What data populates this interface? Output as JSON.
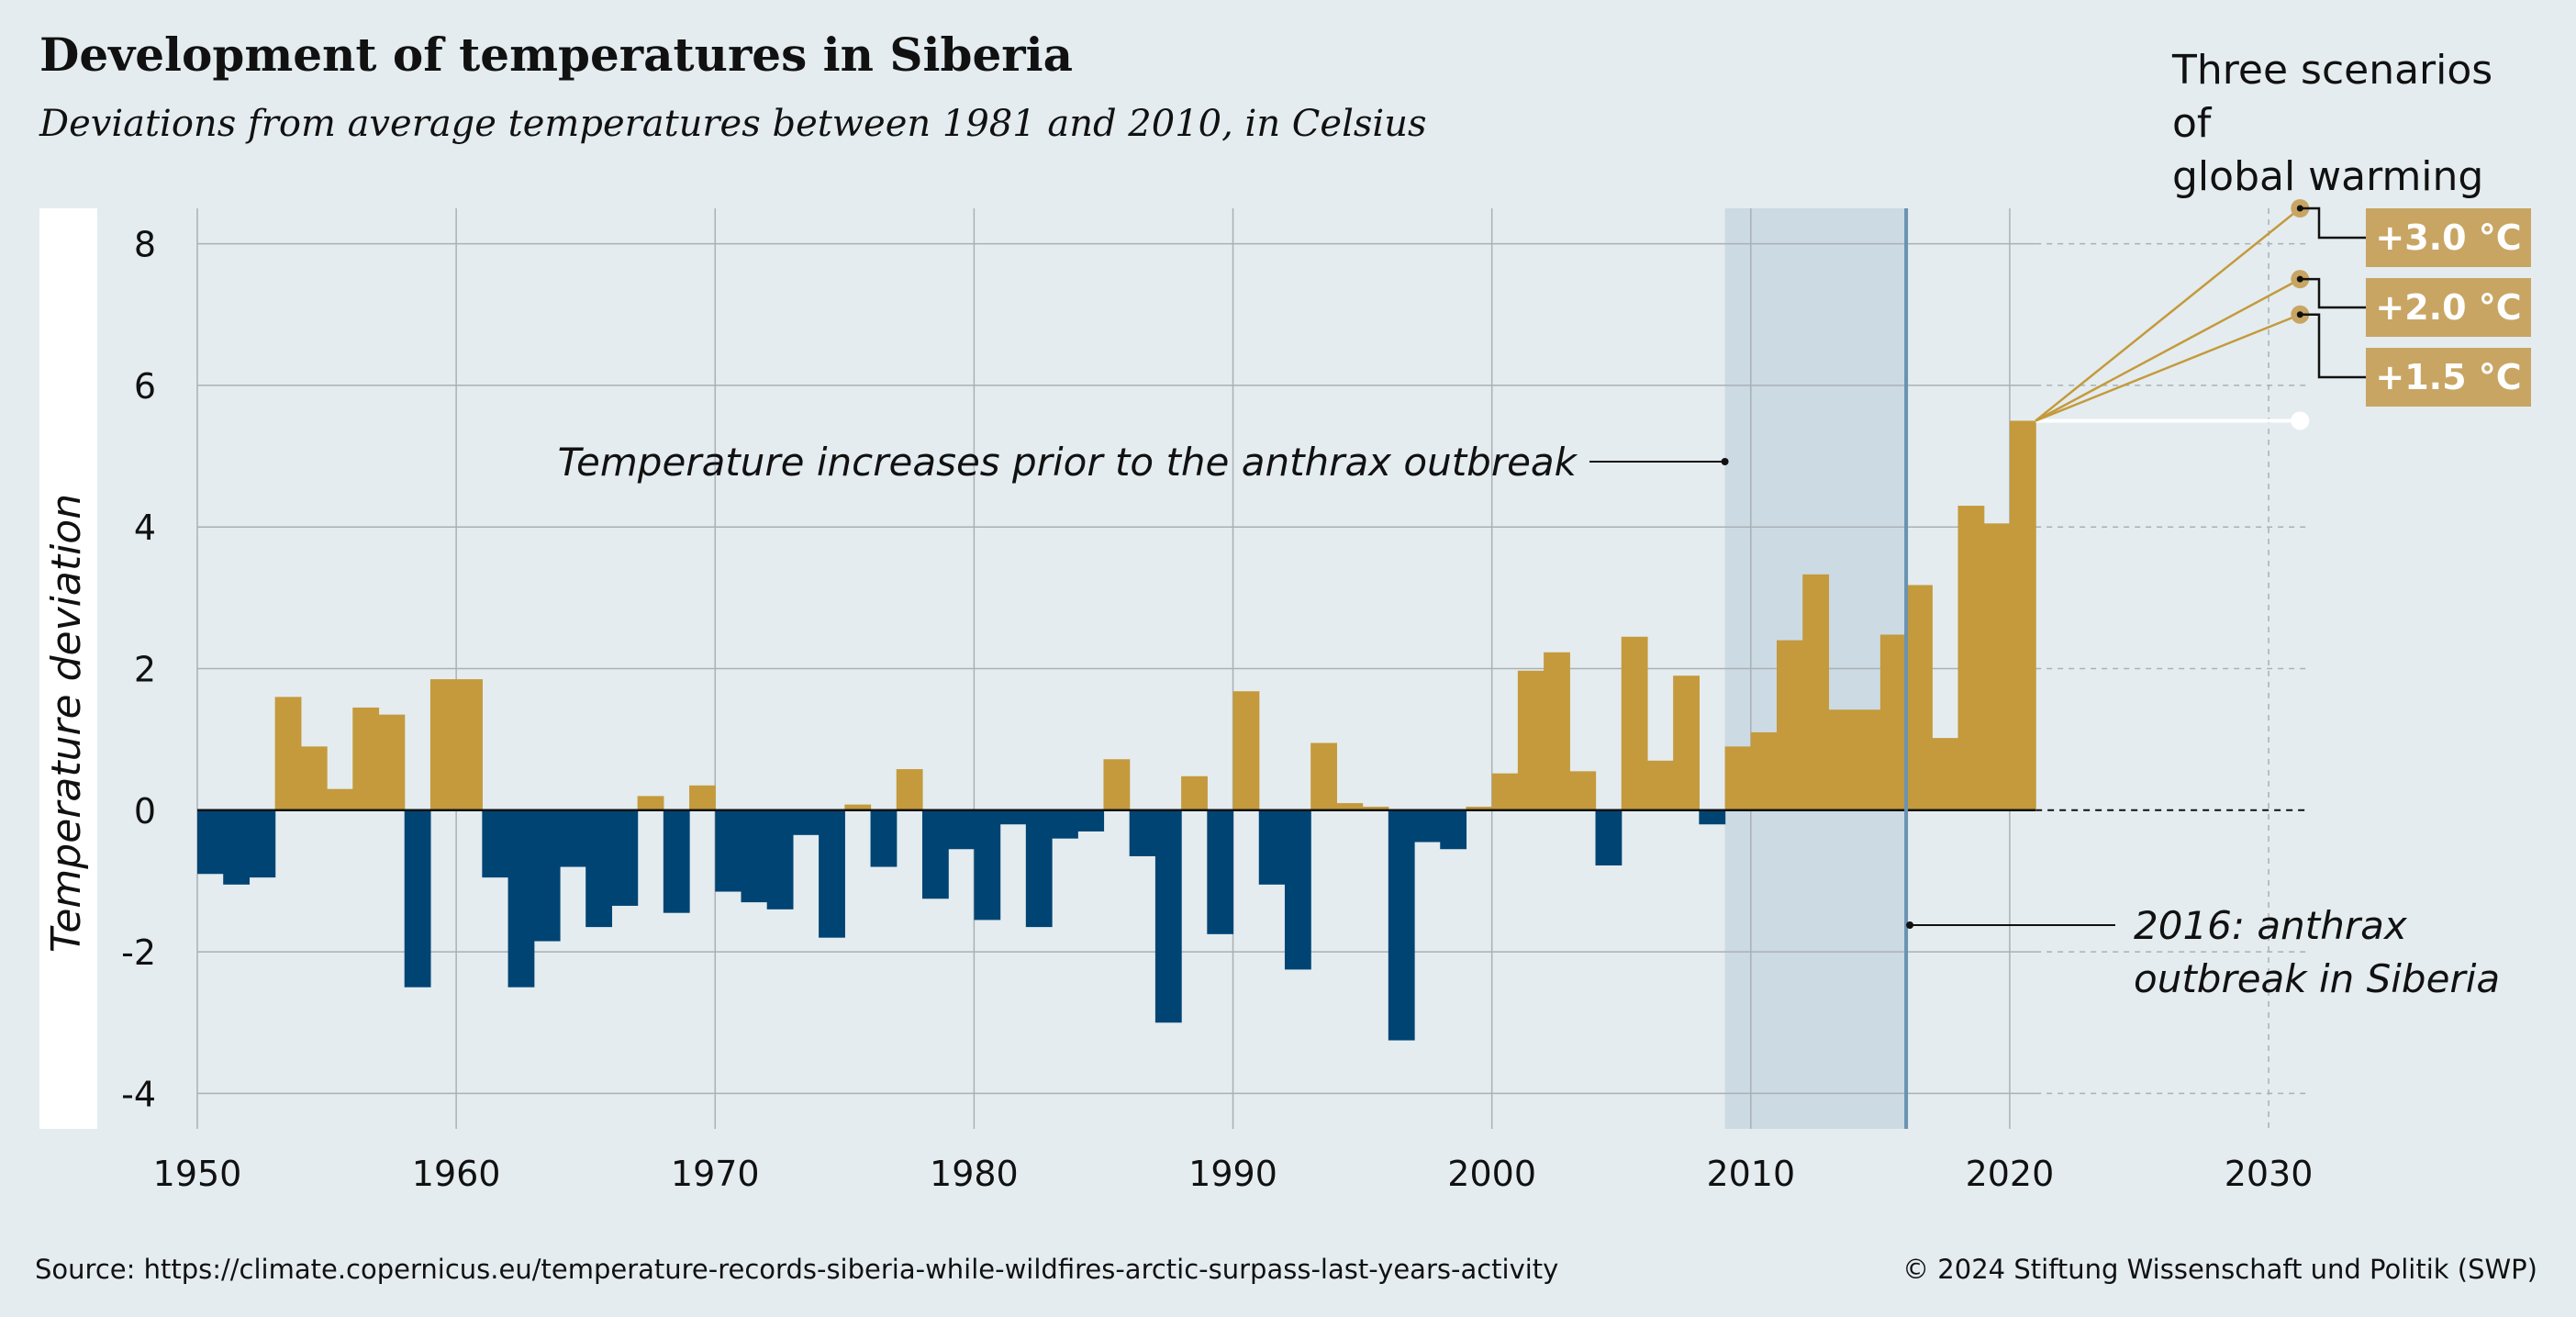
{
  "header": {
    "title": "Development of temperatures in Siberia",
    "subtitle": "Deviations from average temperatures between 1981 and 2010, in Celsius"
  },
  "scenarios_panel": {
    "title_line1": "Three scenarios of",
    "title_line2": "global warming"
  },
  "footer": {
    "source": "Source: https://climate.copernicus.eu/temperature-records-siberia-while-wildfires-arctic-surpass-last-years-activity",
    "copyright": "© 2024 Stiftung Wissenschaft und Politik (SWP)"
  },
  "colors": {
    "positive": "#c49a3c",
    "negative": "#004474",
    "highlight_band": "#ccdae4",
    "marker_line": "#6a92b2",
    "scenario_box": "#c8a563",
    "scenario_line": "#c49a3c",
    "background": "#e4ecef"
  },
  "chart_data": {
    "type": "bar",
    "title": "Development of temperatures in Siberia",
    "subtitle": "Deviations from average temperatures between 1981 and 2010, in Celsius",
    "ylabel": "Temperature deviation",
    "xlabel": "",
    "ylim": [
      -4.5,
      8.5
    ],
    "xlim": [
      1950,
      2032
    ],
    "yticks": [
      -4,
      -2,
      0,
      2,
      4,
      6,
      8
    ],
    "ytick_labels": [
      "-4",
      "-2",
      "0",
      "2",
      "4",
      "6",
      "8"
    ],
    "xticks": [
      1950,
      1960,
      1970,
      1980,
      1990,
      2000,
      2010,
      2020,
      2030
    ],
    "xtick_labels": [
      "1950",
      "1960",
      "1970",
      "1980",
      "1990",
      "2000",
      "2010",
      "2020",
      "2030"
    ],
    "grid": true,
    "years": [
      1950,
      1951,
      1952,
      1953,
      1954,
      1955,
      1956,
      1957,
      1958,
      1959,
      1960,
      1961,
      1962,
      1963,
      1964,
      1965,
      1966,
      1967,
      1968,
      1969,
      1970,
      1971,
      1972,
      1973,
      1974,
      1975,
      1976,
      1977,
      1978,
      1979,
      1980,
      1981,
      1982,
      1983,
      1984,
      1985,
      1986,
      1987,
      1988,
      1989,
      1990,
      1991,
      1992,
      1993,
      1994,
      1995,
      1996,
      1997,
      1998,
      1999,
      2000,
      2001,
      2002,
      2003,
      2004,
      2005,
      2006,
      2007,
      2008,
      2009,
      2010,
      2011,
      2012,
      2013,
      2014,
      2015,
      2016,
      2017,
      2018,
      2019,
      2020
    ],
    "values": [
      -0.9,
      -1.05,
      -0.95,
      1.6,
      0.9,
      0.3,
      1.45,
      1.35,
      -2.5,
      1.85,
      1.85,
      -0.95,
      -2.5,
      -1.85,
      -0.8,
      -1.65,
      -1.35,
      0.2,
      -1.45,
      0.35,
      -1.15,
      -1.3,
      -1.4,
      -0.35,
      -1.8,
      0.08,
      -0.8,
      0.58,
      -1.25,
      -0.55,
      -1.55,
      -0.2,
      -1.65,
      -0.4,
      -0.3,
      0.72,
      -0.65,
      -3.0,
      0.48,
      -1.75,
      1.68,
      -1.05,
      -2.25,
      0.95,
      0.1,
      0.05,
      -3.25,
      -0.45,
      -0.55,
      0.05,
      0.52,
      1.97,
      2.23,
      0.55,
      -0.78,
      2.45,
      0.7,
      1.9,
      -0.2,
      0.9,
      1.1,
      2.4,
      3.33,
      1.42,
      1.42,
      2.48,
      3.18,
      1.02,
      4.3,
      4.05,
      5.5
    ],
    "highlight": {
      "label": "Temperature increases prior to the anthrax outbreak",
      "start_year": 2009,
      "end_year": 2016
    },
    "event": {
      "year": 2016,
      "label_line1": "2016: anthrax",
      "label_line2": "outbreak in Siberia"
    },
    "scenarios": {
      "origin_year": 2020,
      "origin_value": 5.5,
      "target_year": 2031,
      "baseline_value": 5.5,
      "items": [
        {
          "label": "+3.0 °C",
          "value": 8.5
        },
        {
          "label": "+2.0 °C",
          "value": 7.5
        },
        {
          "label": "+1.5 °C",
          "value": 7.0
        }
      ]
    }
  }
}
